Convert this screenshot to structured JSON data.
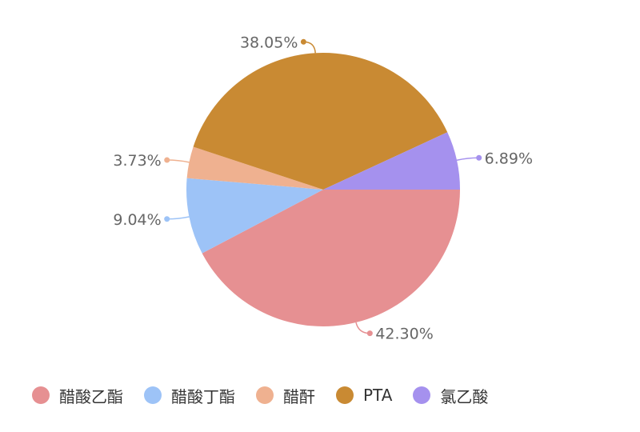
{
  "chart_data": {
    "type": "pie",
    "title": "",
    "categories": [
      "醋酸乙酯",
      "醋酸丁酯",
      "醋酐",
      "PTA",
      "氯乙酸"
    ],
    "values": [
      42.3,
      9.04,
      3.73,
      38.05,
      6.89
    ],
    "labels": [
      "42.30%",
      "9.04%",
      "3.73%",
      "38.05%",
      "6.89%"
    ],
    "colors": [
      "#E69092",
      "#9DC3F7",
      "#EFB190",
      "#C98A33",
      "#A591EE"
    ],
    "legend_position": "bottom"
  },
  "legend": {
    "items": [
      {
        "label": "醋酸乙酯",
        "color": "#E69092"
      },
      {
        "label": "醋酸丁酯",
        "color": "#9DC3F7"
      },
      {
        "label": "醋酐",
        "color": "#EFB190"
      },
      {
        "label": "PTA",
        "color": "#C98A33"
      },
      {
        "label": "氯乙酸",
        "color": "#A591EE"
      }
    ]
  }
}
